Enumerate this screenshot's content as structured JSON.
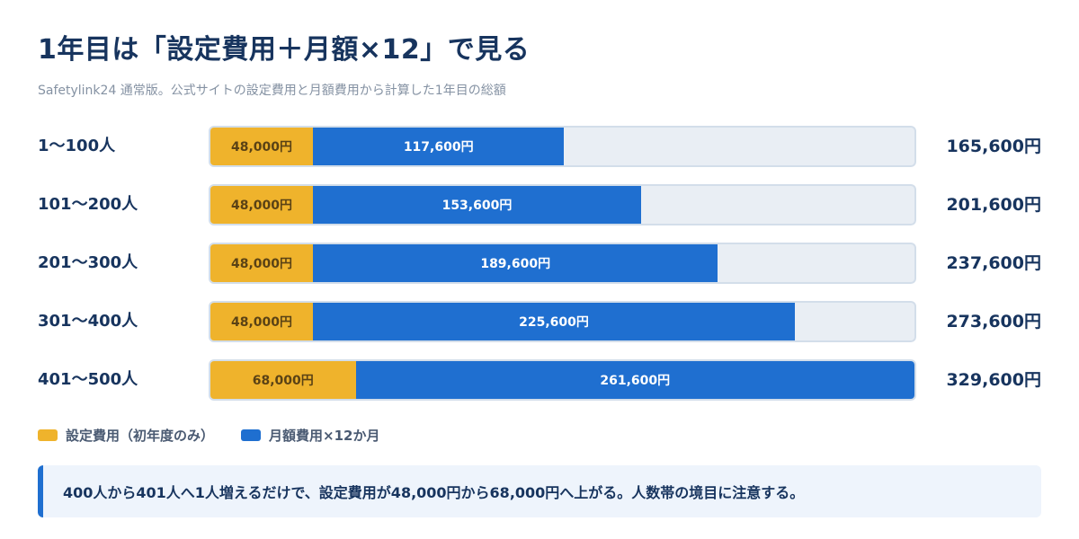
{
  "title": "1年目は「設定費用＋月額×12」で見る",
  "subtitle": "Safetylink24 通常版。公式サイトの設定費用と月額費用から計算した1年目の総額",
  "colors": {
    "setup": "#efb32c",
    "monthly": "#1f6fd0"
  },
  "chart_data": {
    "type": "bar",
    "orientation": "horizontal",
    "stacked": true,
    "title": "1年目は「設定費用＋月額×12」で見る",
    "subtitle": "Safetylink24 通常版。公式サイトの設定費用と月額費用から計算した1年目の総額",
    "categories": [
      "1〜100人",
      "101〜200人",
      "201〜300人",
      "301〜400人",
      "401〜500人"
    ],
    "series": [
      {
        "name": "設定費用（初年度のみ）",
        "values": [
          48000,
          48000,
          48000,
          48000,
          68000
        ],
        "labels": [
          "48,000円",
          "48,000円",
          "48,000円",
          "48,000円",
          "68,000円"
        ]
      },
      {
        "name": "月額費用×12か月",
        "values": [
          117600,
          153600,
          189600,
          225600,
          261600
        ],
        "labels": [
          "117,600円",
          "153,600円",
          "189,600円",
          "225,600円",
          "261,600円"
        ]
      }
    ],
    "totals": [
      165600,
      201600,
      237600,
      273600,
      329600
    ],
    "total_labels": [
      "165,600円",
      "201,600円",
      "237,600円",
      "273,600円",
      "329,600円"
    ],
    "xlim": [
      0,
      329600
    ],
    "legend": "bottom-left",
    "grid": false
  },
  "note": "400人から401人へ1人増えるだけで、設定費用が48,000円から68,000円へ上がる。人数帯の境目に注意する。"
}
